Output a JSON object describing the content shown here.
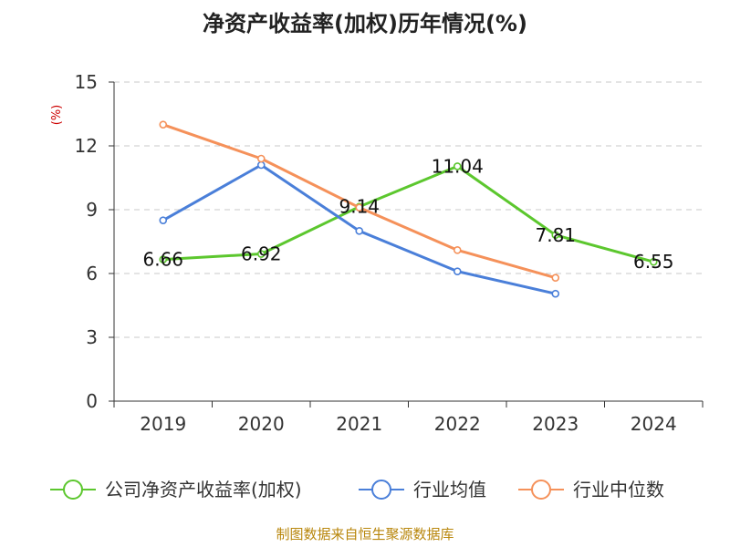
{
  "chart_data": {
    "type": "line",
    "title": "净资产收益率(加权)历年情况(%)",
    "ylabel": "(%)",
    "ylim": [
      0,
      15
    ],
    "yticks": [
      0,
      3,
      6,
      9,
      12,
      15
    ],
    "grid": true,
    "legend_position": "bottom",
    "categories": [
      "2019",
      "2020",
      "2021",
      "2022",
      "2023",
      "2024"
    ],
    "series": [
      {
        "name": "公司净资产收益率(加权)",
        "color": "#5cc72e",
        "values": [
          6.66,
          6.92,
          9.14,
          11.04,
          7.81,
          6.55
        ],
        "labels": [
          "6.66",
          "6.92",
          "9.14",
          "11.04",
          "7.81",
          "6.55"
        ]
      },
      {
        "name": "行业均值",
        "color": "#4a7fd9",
        "values": [
          8.5,
          11.1,
          8.0,
          6.1,
          5.05,
          null
        ]
      },
      {
        "name": "行业中位数",
        "color": "#f5915a",
        "values": [
          13.0,
          11.4,
          9.1,
          7.1,
          5.8,
          null
        ]
      }
    ]
  },
  "source": "制图数据来自恒生聚源数据库"
}
